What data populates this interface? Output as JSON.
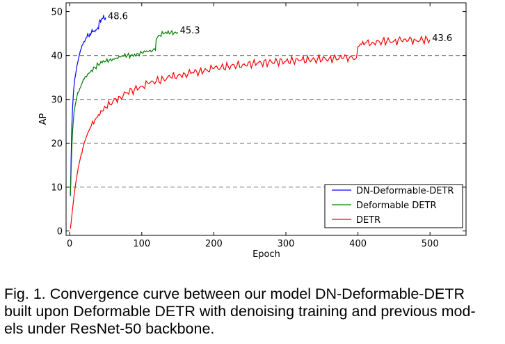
{
  "chart_data": {
    "type": "line",
    "title": "",
    "xlabel": "Epoch",
    "ylabel": "AP",
    "xlim": [
      -5,
      550
    ],
    "ylim": [
      -1,
      52
    ],
    "xticks": [
      "0",
      "100",
      "200",
      "300",
      "400",
      "500"
    ],
    "yticks": [
      "0",
      "10",
      "20",
      "30",
      "40",
      "50"
    ],
    "grid": "horizontal dashed at 10, 20, 30, 40",
    "legend_position": "lower-right",
    "series": [
      {
        "name": "DN-Deformable-DETR",
        "color": "#0000ff",
        "end_label": "48.6",
        "x": [
          1,
          2,
          3,
          4,
          5,
          6,
          7,
          8,
          9,
          10,
          12,
          14,
          16,
          18,
          20,
          22,
          24,
          26,
          28,
          30,
          32,
          34,
          36,
          38,
          40,
          41,
          42,
          44,
          46,
          48,
          50
        ],
        "y": [
          8,
          17,
          24,
          28,
          31,
          33,
          34.5,
          35.5,
          36.5,
          37.5,
          39,
          40.5,
          41.5,
          42.5,
          43.2,
          43.8,
          44.2,
          44.5,
          44.9,
          45.2,
          45.4,
          45.6,
          45.8,
          46,
          46.1,
          47.8,
          48.1,
          48.3,
          48.4,
          48.5,
          48.6
        ]
      },
      {
        "name": "Deformable DETR",
        "color": "#008000",
        "end_label": "45.3",
        "x": [
          1,
          2,
          3,
          4,
          5,
          6,
          8,
          10,
          12,
          14,
          16,
          18,
          20,
          25,
          30,
          35,
          40,
          45,
          50,
          55,
          60,
          65,
          70,
          75,
          80,
          85,
          90,
          95,
          100,
          105,
          110,
          115,
          119,
          120,
          122,
          125,
          130,
          135,
          140,
          145,
          150
        ],
        "y": [
          8,
          14,
          19,
          22.5,
          25,
          27,
          29,
          30.5,
          31.5,
          32.5,
          33.3,
          34,
          34.6,
          35.8,
          36.6,
          37.3,
          37.8,
          38.3,
          38.6,
          38.9,
          39.2,
          39.4,
          39.6,
          39.8,
          40,
          40.1,
          40.3,
          40.4,
          40.6,
          40.8,
          41,
          41.1,
          41.2,
          43.6,
          44.2,
          44.6,
          44.9,
          45,
          45.1,
          45.2,
          45.3
        ]
      },
      {
        "name": "DETR",
        "color": "#ff0000",
        "end_label": "43.6",
        "x": [
          1,
          2,
          3,
          4,
          5,
          6,
          8,
          10,
          12,
          14,
          16,
          18,
          20,
          25,
          30,
          35,
          40,
          45,
          50,
          60,
          70,
          80,
          90,
          100,
          110,
          120,
          130,
          140,
          150,
          160,
          170,
          180,
          190,
          200,
          220,
          240,
          260,
          280,
          300,
          320,
          340,
          360,
          380,
          398,
          400,
          405,
          410,
          420,
          430,
          440,
          450,
          460,
          470,
          480,
          490,
          500
        ],
        "y": [
          0.5,
          2,
          3.5,
          5,
          6.5,
          8,
          10.5,
          12.5,
          14.5,
          16,
          17.5,
          18.8,
          20,
          22.3,
          24,
          25.3,
          26.5,
          27.3,
          28.1,
          29.5,
          30.6,
          31.5,
          32.3,
          33,
          33.6,
          34.1,
          34.6,
          35,
          35.4,
          35.8,
          36.1,
          36.4,
          36.7,
          37,
          37.5,
          37.9,
          38.2,
          38.5,
          38.7,
          38.9,
          39.1,
          39.3,
          39.4,
          39.5,
          42,
          42.5,
          42.8,
          43,
          43.1,
          43.2,
          43.3,
          43.4,
          43.4,
          43.5,
          43.5,
          43.6
        ]
      }
    ]
  },
  "caption": {
    "lines": [
      "Fig. 1. Convergence curve between our model DN-Deformable-DETR",
      "built upon Deformable DETR with denoising training and previous mod-",
      "els under ResNet-50 backbone."
    ]
  }
}
